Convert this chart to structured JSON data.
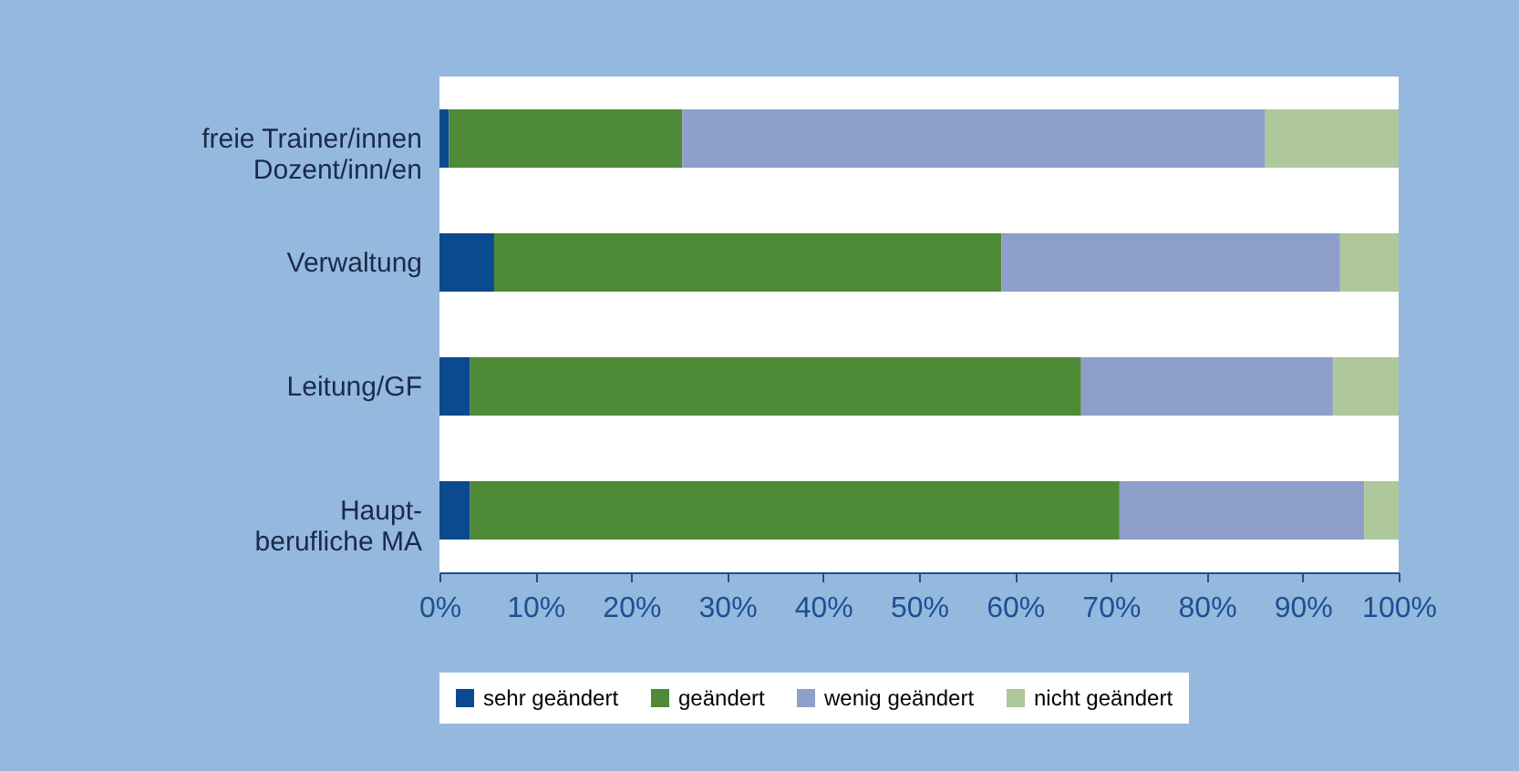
{
  "chart_data": {
    "type": "bar",
    "orientation": "horizontal",
    "stacked": true,
    "categories": [
      "freie Trainer/innen\nDozent/inn/en",
      "Verwaltung",
      "Leitung/GF",
      "Haupt-\nberufliche MA"
    ],
    "series": [
      {
        "name": "sehr geändert",
        "color": "#0b4a8e",
        "values": [
          1,
          5.7,
          3.2,
          3.2
        ]
      },
      {
        "name": "geändert",
        "color": "#4f8a36",
        "values": [
          24.3,
          52.9,
          63.7,
          67.7
        ]
      },
      {
        "name": "wenig geändert",
        "color": "#8e9fca",
        "values": [
          60.8,
          35.3,
          26.3,
          25.5
        ]
      },
      {
        "name": "nicht geändert",
        "color": "#aec79b",
        "values": [
          13.9,
          6.1,
          6.8,
          3.6
        ]
      }
    ],
    "xlim": [
      0,
      100
    ],
    "xticks": [
      {
        "value": 0,
        "label": "0%"
      },
      {
        "value": 10,
        "label": "10%"
      },
      {
        "value": 20,
        "label": "20%"
      },
      {
        "value": 30,
        "label": "30%"
      },
      {
        "value": 40,
        "label": "40%"
      },
      {
        "value": 50,
        "label": "50%"
      },
      {
        "value": 60,
        "label": "60%"
      },
      {
        "value": 70,
        "label": "70%"
      },
      {
        "value": 80,
        "label": "80%"
      },
      {
        "value": 90,
        "label": "90%"
      },
      {
        "value": 100,
        "label": "100%"
      }
    ],
    "grid": false,
    "legend": "bottom"
  }
}
